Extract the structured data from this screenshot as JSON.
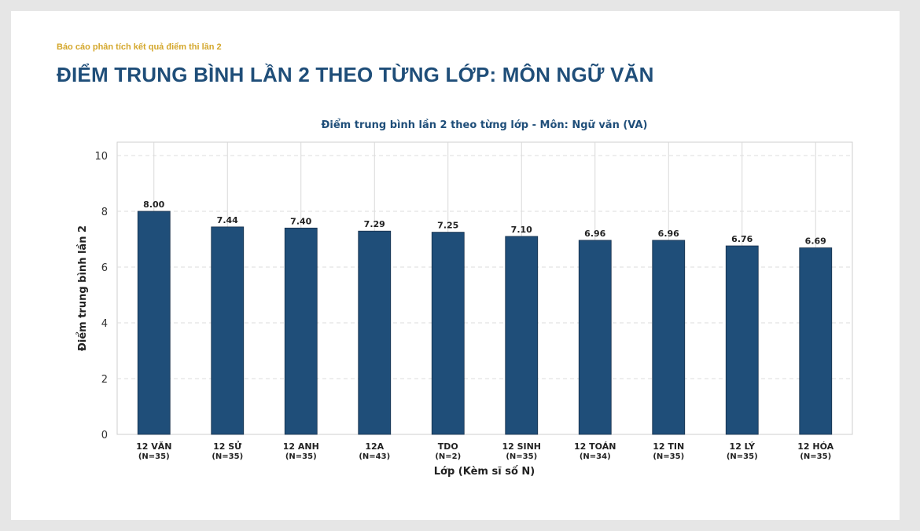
{
  "header": {
    "subtitle": "Báo cáo phân tích kết quả điểm thi lần 2",
    "title": "ĐIỂM TRUNG BÌNH LẦN 2 THEO TỪNG LỚP: MÔN NGỮ VĂN"
  },
  "colors": {
    "bar": "#1f4e79",
    "accent": "#d4a72c",
    "title": "#1f4e79"
  },
  "chart_data": {
    "type": "bar",
    "title": "Điểm trung bình lần 2 theo từng lớp - Môn: Ngữ văn (VA)",
    "xlabel": "Lớp (Kèm sĩ số N)",
    "ylabel": "Điểm trung bình lần 2",
    "ylim": [
      0,
      10
    ],
    "yticks": [
      0,
      2,
      4,
      6,
      8,
      10
    ],
    "grid": true,
    "categories": [
      "12 VĂN",
      "12 SỬ",
      "12 ANH",
      "12A",
      "TDO",
      "12 SINH",
      "12 TOÁN",
      "12 TIN",
      "12 LÝ",
      "12 HÓA"
    ],
    "counts": [
      "(N=35)",
      "(N=35)",
      "(N=35)",
      "(N=43)",
      "(N=2)",
      "(N=35)",
      "(N=34)",
      "(N=35)",
      "(N=35)",
      "(N=35)"
    ],
    "values": [
      8.0,
      7.44,
      7.4,
      7.29,
      7.25,
      7.1,
      6.96,
      6.96,
      6.76,
      6.69
    ],
    "value_labels": [
      "8.00",
      "7.44",
      "7.40",
      "7.29",
      "7.25",
      "7.10",
      "6.96",
      "6.96",
      "6.76",
      "6.69"
    ]
  }
}
